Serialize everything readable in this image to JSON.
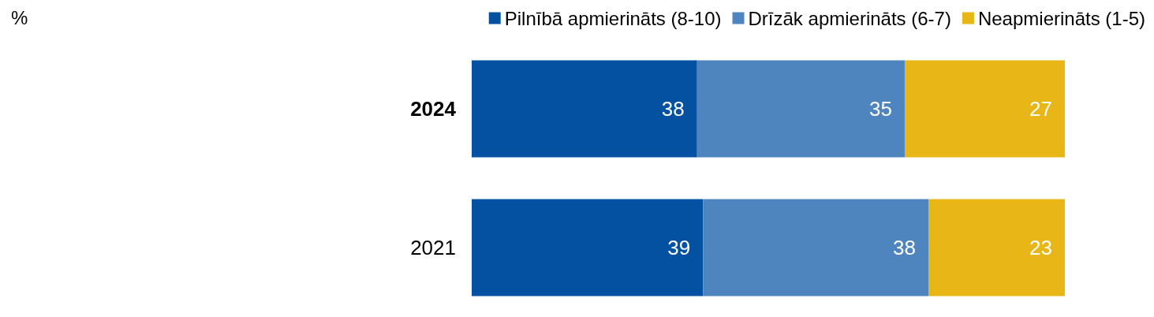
{
  "chart_data": {
    "type": "bar",
    "orientation": "horizontal",
    "stacked": true,
    "data_labels": true,
    "legend": "top right",
    "grid": false,
    "xlim": [
      0,
      100
    ],
    "categories": [
      "2024",
      "2021"
    ],
    "series": [
      {
        "name": "Pilnībā apmierināts (8-10)",
        "color": "#0351a0",
        "values": [
          38,
          39
        ]
      },
      {
        "name": "Drīzāk apmierināts (6-7)",
        "color": "#4f85bf",
        "values": [
          35,
          38
        ]
      },
      {
        "name": "Neapmierināts (1-5)",
        "color": "#e8b617",
        "values": [
          27,
          23
        ]
      }
    ],
    "annotations": [
      "%"
    ]
  }
}
